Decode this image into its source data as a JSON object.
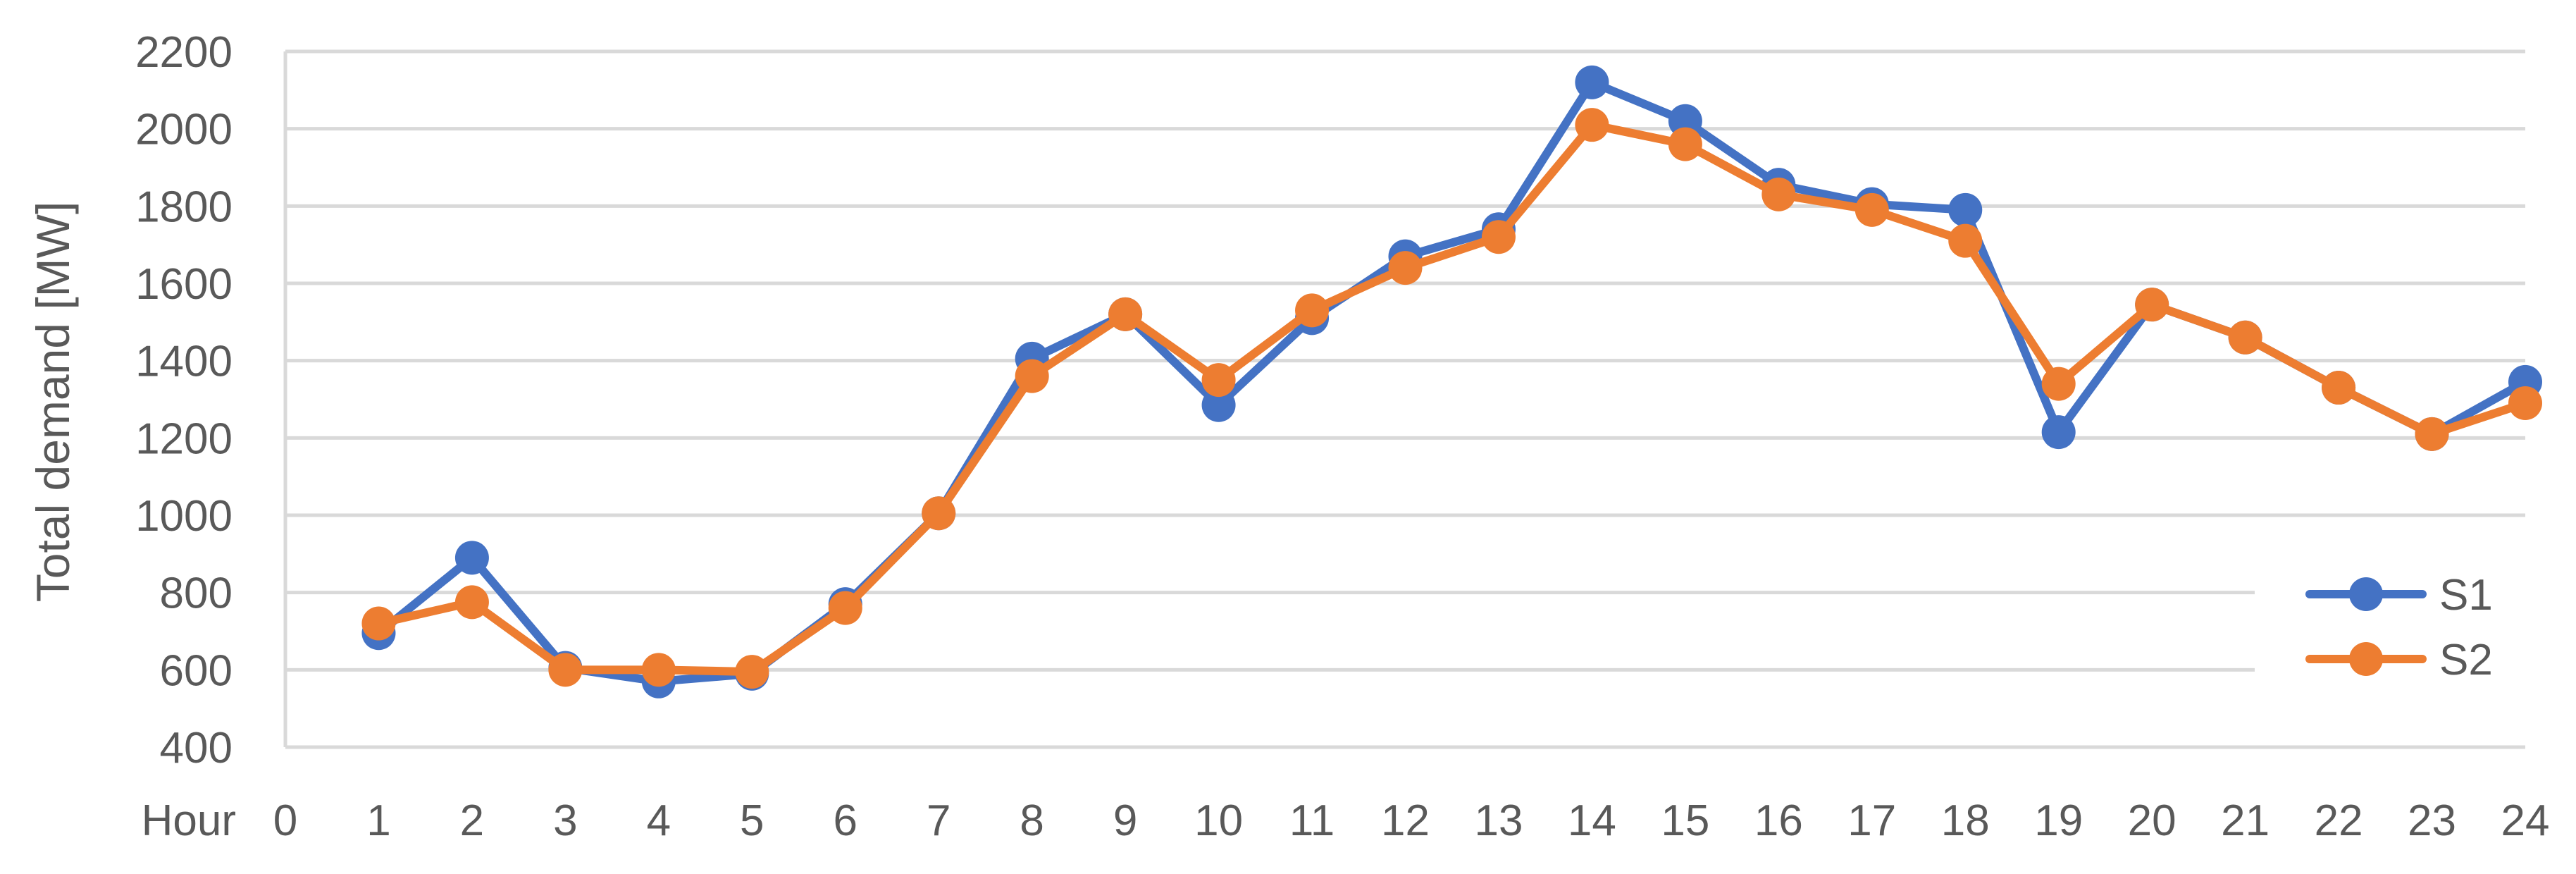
{
  "chart_data": {
    "type": "line",
    "xlabel": "Hour",
    "ylabel": "Total demand [MW]",
    "x": [
      1,
      2,
      3,
      4,
      5,
      6,
      7,
      8,
      9,
      10,
      11,
      12,
      13,
      14,
      15,
      16,
      17,
      18,
      19,
      20,
      21,
      22,
      23,
      24
    ],
    "x_ticks": [
      "0",
      "1",
      "2",
      "3",
      "4",
      "5",
      "6",
      "7",
      "8",
      "9",
      "10",
      "11",
      "12",
      "13",
      "14",
      "15",
      "16",
      "17",
      "18",
      "19",
      "20",
      "21",
      "22",
      "23",
      "24"
    ],
    "xlim": [
      0,
      24
    ],
    "ylim": [
      400,
      2200
    ],
    "y_ticks": [
      400,
      600,
      800,
      1000,
      1200,
      1400,
      1600,
      1800,
      2000,
      2200
    ],
    "grid": true,
    "legend_position": "bottom-right",
    "series": [
      {
        "name": "S1",
        "color": "#4472c4",
        "values": [
          695,
          890,
          605,
          570,
          590,
          770,
          1005,
          1405,
          1520,
          1285,
          1510,
          1670,
          1740,
          2120,
          2020,
          1855,
          1805,
          1790,
          1215,
          1545,
          1460,
          1330,
          1210,
          1345
        ]
      },
      {
        "name": "S2",
        "color": "#ed7d31",
        "values": [
          720,
          775,
          600,
          600,
          595,
          760,
          1005,
          1360,
          1520,
          1350,
          1530,
          1640,
          1720,
          2010,
          1960,
          1830,
          1790,
          1710,
          1340,
          1545,
          1460,
          1330,
          1210,
          1290
        ]
      }
    ]
  }
}
